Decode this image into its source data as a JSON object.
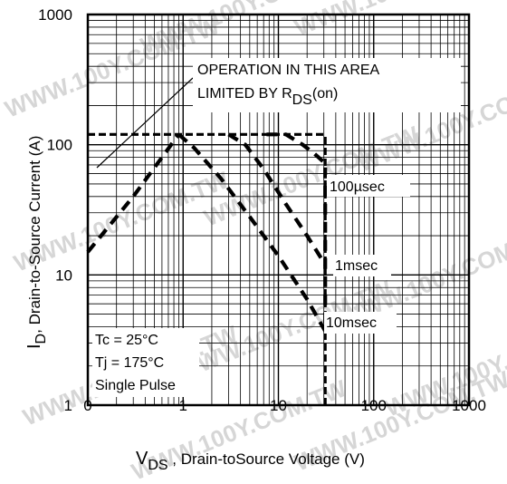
{
  "chart_data": {
    "type": "line",
    "xlabel_main": "V",
    "xlabel_sub": "DS",
    "xlabel_rest": " , Drain-toSource Voltage (V)",
    "ylabel_main": "I",
    "ylabel_sub": "D",
    "ylabel_rest": ",  Drain-to-Source Current (A)",
    "x_scale": "log",
    "y_scale": "log",
    "xlim": [
      0.1,
      1000
    ],
    "ylim": [
      1,
      1000
    ],
    "x_tick_labels": [
      "0",
      "1",
      "10",
      "100",
      "1000"
    ],
    "y_tick_labels": [
      "1",
      "10",
      "100",
      "1000"
    ],
    "grid": true,
    "series": [
      {
        "label": "100µsec",
        "x": [
          7.5,
          12,
          18,
          24,
          31,
          31
        ],
        "y": [
          120,
          120,
          100,
          85,
          72,
          4
        ]
      },
      {
        "label": "1msec",
        "x": [
          3.0,
          4.5,
          7,
          12,
          20,
          31
        ],
        "y": [
          120,
          100,
          65,
          35,
          20,
          12
        ]
      },
      {
        "label": "10msec",
        "x": [
          0.9,
          1.3,
          2.5,
          5,
          10,
          20,
          31
        ],
        "y": [
          120,
          95,
          55,
          28,
          14,
          6.5,
          3.7
        ]
      },
      {
        "label": "RDS(on) limit",
        "x": [
          0.1,
          0.3,
          0.6,
          0.9
        ],
        "y": [
          15,
          40,
          80,
          120
        ]
      },
      {
        "label": "current limit",
        "x": [
          0.1,
          31
        ],
        "y": [
          120,
          120
        ]
      },
      {
        "label": "voltage limit",
        "x": [
          31,
          31
        ],
        "y": [
          1,
          120
        ]
      }
    ],
    "area_note_line1": "OPERATION IN THIS AREA",
    "area_note_line2_main": "LIMITED BY R",
    "area_note_line2_sub": "DS",
    "area_note_line2_end": "(on)",
    "conditions": [
      "Tc = 25°C",
      "Tj = 175°C",
      "Single Pulse"
    ]
  },
  "watermark": "WWW.100Y.COM.TW"
}
